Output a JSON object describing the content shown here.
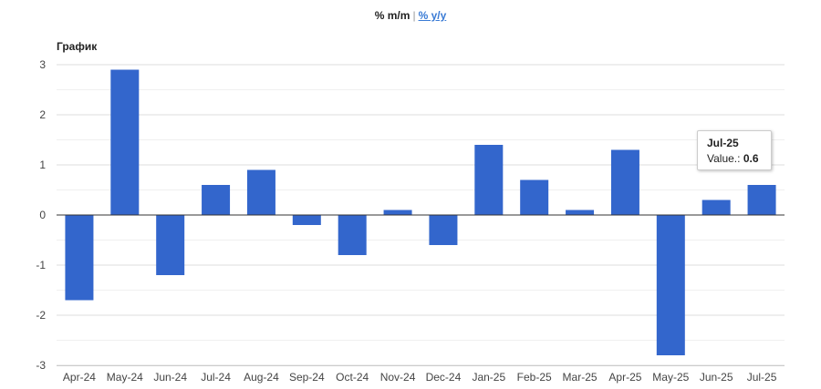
{
  "toggle": {
    "mm_label": "% m/m",
    "separator": "|",
    "yy_label": "% y/y"
  },
  "chart_title": "График",
  "tooltip": {
    "category": "Jul-25",
    "value_label": "Value.:",
    "value": "0.6"
  },
  "colors": {
    "bar": "#3366cc",
    "grid": "#e0e0e0",
    "axis": "#333333",
    "text": "#444444"
  },
  "chart_data": {
    "type": "bar",
    "title": "График",
    "xlabel": "",
    "ylabel": "",
    "ylim": [
      -3,
      3
    ],
    "yticks": [
      3,
      2,
      1,
      0,
      -1,
      -2,
      -3
    ],
    "grid": true,
    "categories": [
      "Apr-24",
      "May-24",
      "Jun-24",
      "Jul-24",
      "Aug-24",
      "Sep-24",
      "Oct-24",
      "Nov-24",
      "Dec-24",
      "Jan-25",
      "Feb-25",
      "Mar-25",
      "Apr-25",
      "May-25",
      "Jun-25",
      "Jul-25"
    ],
    "values": [
      -1.7,
      2.9,
      -1.2,
      0.6,
      0.9,
      -0.2,
      -0.8,
      0.1,
      -0.6,
      1.4,
      0.7,
      0.1,
      1.3,
      -2.8,
      0.3,
      0.6
    ]
  }
}
